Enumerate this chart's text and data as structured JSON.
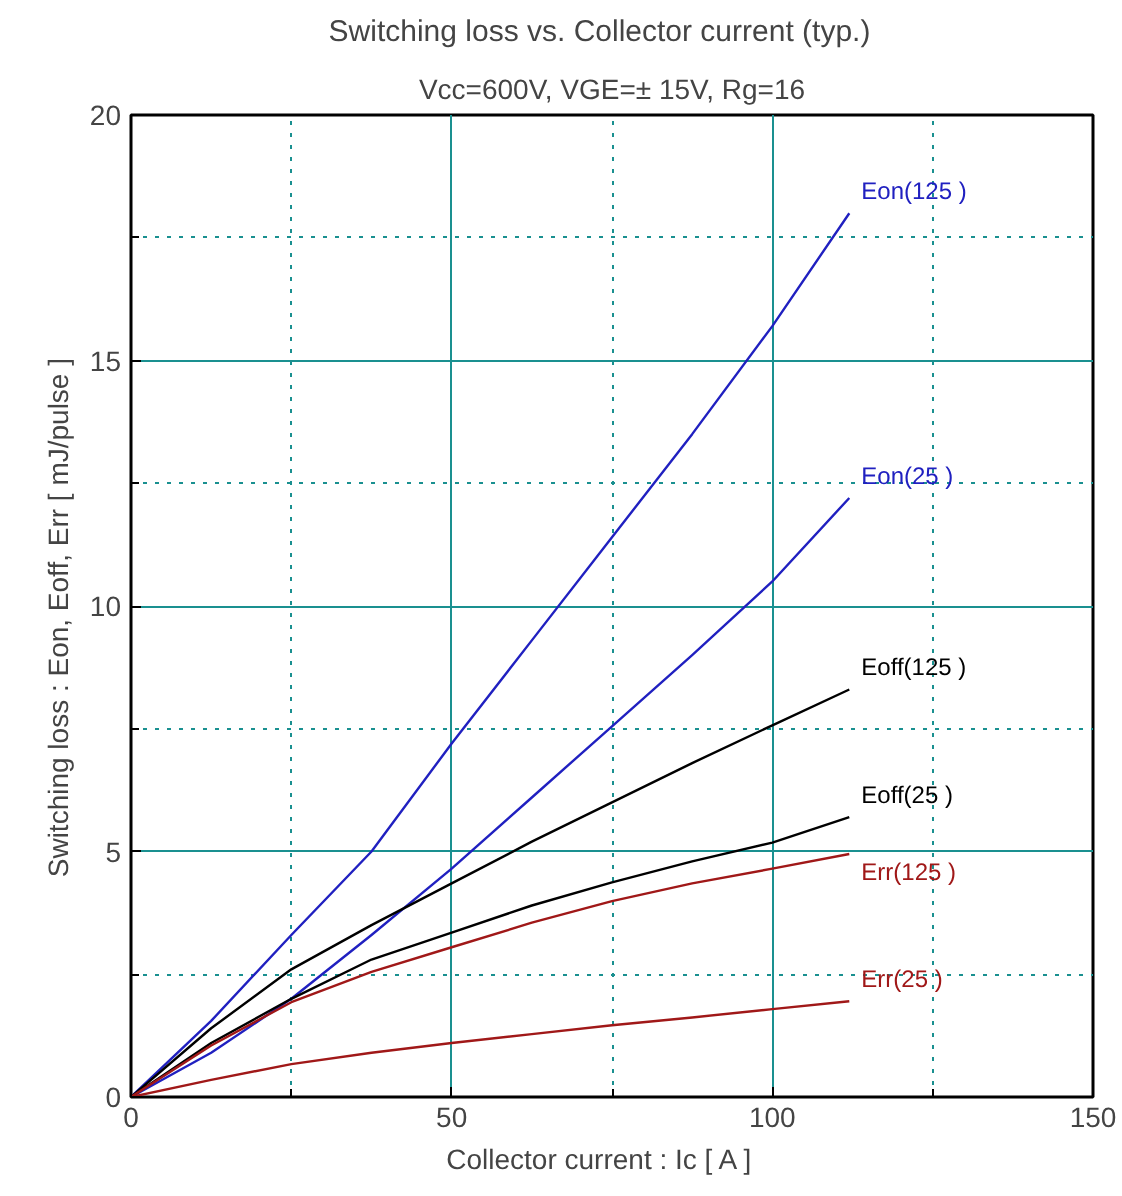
{
  "chart_data": {
    "type": "line",
    "title": "Switching loss  vs.  Collector current  (typ.)",
    "subtitle": "Vcc=600V, VGE=± 15V, Rg=16",
    "xlabel": "Collector current  :  Ic  [ A ]",
    "ylabel": "Switching loss  :  Eon, Eoff, Err  [ mJ/pulse ]",
    "x": [
      0,
      12.5,
      25,
      37.5,
      50,
      62.5,
      75,
      87.5,
      100,
      112
    ],
    "series": [
      {
        "name": "Eon(125      )",
        "color": "#2020c0",
        "values": [
          0,
          1.55,
          3.3,
          5.0,
          7.2,
          9.3,
          11.4,
          13.5,
          15.7,
          18.0
        ]
      },
      {
        "name": "Eon(25      )",
        "color": "#2020c0",
        "values": [
          0,
          0.9,
          2.0,
          3.3,
          4.65,
          6.1,
          7.55,
          9.0,
          10.5,
          12.2
        ]
      },
      {
        "name": "Eoff(125      )",
        "color": "#000000",
        "values": [
          0,
          1.4,
          2.6,
          3.5,
          4.35,
          5.2,
          6.0,
          6.8,
          7.57,
          8.3
        ]
      },
      {
        "name": "Eoff(25      )",
        "color": "#000000",
        "values": [
          0,
          1.1,
          2.0,
          2.8,
          3.35,
          3.9,
          4.37,
          4.8,
          5.18,
          5.7
        ]
      },
      {
        "name": "Err(125      )",
        "color": "#a01818",
        "values": [
          0,
          1.05,
          1.93,
          2.55,
          3.05,
          3.55,
          3.99,
          4.35,
          4.65,
          4.95
        ]
      },
      {
        "name": "Err(25      )",
        "color": "#a01818",
        "values": [
          0,
          0.35,
          0.67,
          0.9,
          1.1,
          1.28,
          1.46,
          1.62,
          1.79,
          1.95
        ]
      }
    ],
    "xlim": [
      0,
      150
    ],
    "ylim": [
      0,
      20
    ],
    "xticks": [
      0,
      {
        "value": 25,
        "label": null
      },
      50,
      {
        "value": 75,
        "label": null
      },
      100,
      {
        "value": 125,
        "label": null
      },
      150
    ],
    "yticks": [
      0,
      {
        "value": 2.5,
        "label": null
      },
      5,
      {
        "value": 7.5,
        "label": null
      },
      10,
      {
        "value": 12.5,
        "label": null
      },
      15,
      {
        "value": 17.5,
        "label": null
      },
      20
    ],
    "grid": true,
    "line_style": "solid",
    "marker": "none"
  }
}
